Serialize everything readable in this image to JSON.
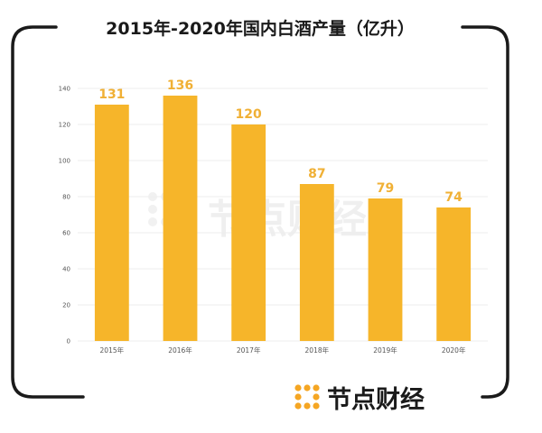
{
  "title": "2015年-2020年国内白酒产量（亿升）",
  "brand": {
    "name": "节点财经",
    "icon": "brand-logo-icon"
  },
  "watermark": {
    "text": "节点财经",
    "icon": "brand-logo-icon"
  },
  "colors": {
    "bar": "#F6B52A",
    "label": "#F0B035",
    "frame": "#1A1A1A",
    "accent": "#F5A623"
  },
  "chart_data": {
    "type": "bar",
    "categories": [
      "2015年",
      "2016年",
      "2017年",
      "2018年",
      "2019年",
      "2020年"
    ],
    "values": [
      131,
      136,
      120,
      87,
      79,
      74
    ],
    "data_labels": [
      "131",
      "136",
      "120",
      "87",
      "79",
      "74"
    ],
    "title": "2015年-2020年国内白酒产量（亿升）",
    "xlabel": "",
    "ylabel": "",
    "ylim": [
      0,
      140
    ],
    "yticks": [
      "0",
      "20",
      "40",
      "60",
      "80",
      "100",
      "120",
      "140"
    ],
    "grid": true,
    "legend": "none"
  }
}
